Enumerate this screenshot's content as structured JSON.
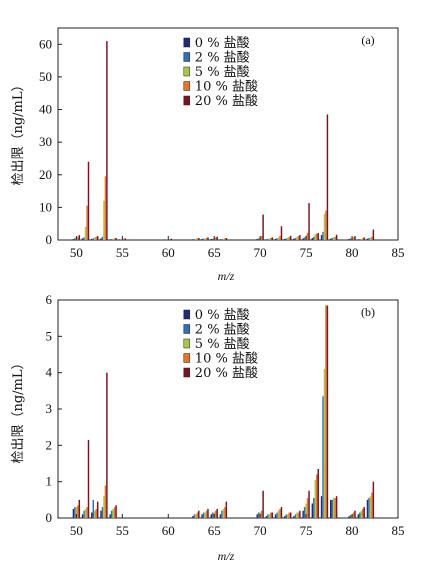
{
  "figure": {
    "ylabel": "检出限（ng/mL）",
    "xlabel_top": "m/z",
    "xlabel_bottom": "m/z"
  },
  "chart_data": [
    {
      "type": "bar",
      "panel_label": "(a)",
      "xlabel": "m/z",
      "ylabel": "检出限（ng/mL）",
      "xlim": [
        48,
        85
      ],
      "ylim": [
        0,
        65
      ],
      "xticks": [
        50,
        55,
        60,
        65,
        70,
        75,
        80,
        85
      ],
      "yticks": [
        0,
        10,
        20,
        30,
        40,
        50,
        60
      ],
      "legend_position": "top-center",
      "series_colors": [
        "#1f2a78",
        "#2f6fb5",
        "#a6c84a",
        "#e8742a",
        "#7a1420"
      ],
      "x": [
        50,
        51,
        52,
        53,
        54,
        55,
        60,
        63,
        64,
        65,
        66,
        70,
        71,
        72,
        73,
        74,
        75,
        76,
        77,
        78,
        80,
        81,
        82
      ],
      "series": [
        {
          "name": "0 % 盐酸",
          "values": [
            0.3,
            0.5,
            0.3,
            0.5,
            0.2,
            0.2,
            0.2,
            0.2,
            0.3,
            0.3,
            0.2,
            0.3,
            0.2,
            0.3,
            0.3,
            0.4,
            0.5,
            0.6,
            1.5,
            0.4,
            0.3,
            0.2,
            0.4
          ]
        },
        {
          "name": "2 % 盐酸",
          "values": [
            0.5,
            0.8,
            0.5,
            1.0,
            0.3,
            0.2,
            0.2,
            0.3,
            0.4,
            0.4,
            0.3,
            0.5,
            0.3,
            0.5,
            0.5,
            0.6,
            0.8,
            1.0,
            2.5,
            0.6,
            0.5,
            0.3,
            0.6
          ]
        },
        {
          "name": "5 % 盐酸",
          "values": [
            0.8,
            4.0,
            0.8,
            12.0,
            0.4,
            0.3,
            0.3,
            0.4,
            0.5,
            0.6,
            0.4,
            0.8,
            0.5,
            0.8,
            0.7,
            0.9,
            1.5,
            1.8,
            8.0,
            0.9,
            0.6,
            0.4,
            0.8
          ]
        },
        {
          "name": "10 % 盐酸",
          "values": [
            1.0,
            10.5,
            1.0,
            19.5,
            0.5,
            0.4,
            0.3,
            0.5,
            0.6,
            0.8,
            0.5,
            1.2,
            0.6,
            1.2,
            0.9,
            1.2,
            2.2,
            2.0,
            9.0,
            1.0,
            0.8,
            0.5,
            1.0
          ]
        },
        {
          "name": "20 % 盐酸",
          "values": [
            1.5,
            24.0,
            1.2,
            61.0,
            0.6,
            0.5,
            0.4,
            0.6,
            0.8,
            1.0,
            0.6,
            7.8,
            0.8,
            4.2,
            1.3,
            1.5,
            11.3,
            2.1,
            38.5,
            1.6,
            1.2,
            0.8,
            3.2
          ]
        }
      ]
    },
    {
      "type": "bar",
      "panel_label": "(b)",
      "xlabel": "m/z",
      "ylabel": "检出限（ng/mL）",
      "xlim": [
        48,
        85
      ],
      "ylim": [
        0,
        6
      ],
      "xticks": [
        50,
        55,
        60,
        65,
        70,
        75,
        80,
        85
      ],
      "yticks": [
        0,
        1,
        2,
        3,
        4,
        5,
        6
      ],
      "legend_position": "top-center",
      "series_colors": [
        "#1f2a78",
        "#2f6fb5",
        "#a6c84a",
        "#e8742a",
        "#7a1420"
      ],
      "x": [
        50,
        51,
        52,
        53,
        54,
        63,
        64,
        65,
        66,
        70,
        71,
        72,
        73,
        74,
        75,
        76,
        77,
        78,
        80,
        81,
        82
      ],
      "series": [
        {
          "name": "0 % 盐酸",
          "values": [
            0.25,
            0.1,
            0.15,
            0.2,
            0.1,
            0.05,
            0.1,
            0.1,
            0.1,
            0.1,
            0.05,
            0.1,
            0.05,
            0.05,
            0.2,
            0.4,
            0.6,
            0.5,
            0.05,
            0.1,
            0.5
          ]
        },
        {
          "name": "2 % 盐酸",
          "values": [
            0.3,
            0.2,
            0.5,
            0.3,
            0.2,
            0.1,
            0.15,
            0.15,
            0.2,
            0.15,
            0.1,
            0.15,
            0.1,
            0.1,
            0.3,
            0.55,
            3.35,
            0.5,
            0.08,
            0.15,
            0.55
          ]
        },
        {
          "name": "5 % 盐酸",
          "values": [
            0.3,
            0.25,
            0.2,
            0.6,
            0.25,
            0.1,
            0.15,
            0.15,
            0.25,
            0.15,
            0.1,
            0.2,
            0.1,
            0.15,
            0.4,
            1.05,
            4.1,
            0.55,
            0.1,
            0.2,
            0.6
          ]
        },
        {
          "name": "10 % 盐酸",
          "values": [
            0.35,
            0.3,
            0.25,
            0.9,
            0.3,
            0.15,
            0.2,
            0.2,
            0.3,
            0.2,
            0.15,
            0.25,
            0.15,
            0.15,
            0.55,
            1.2,
            5.85,
            0.55,
            0.15,
            0.25,
            0.7
          ]
        },
        {
          "name": "20 % 盐酸",
          "values": [
            0.5,
            2.15,
            0.45,
            4.0,
            0.35,
            0.2,
            0.25,
            0.25,
            0.45,
            0.75,
            0.15,
            0.3,
            0.15,
            0.2,
            0.75,
            1.35,
            5.85,
            0.6,
            0.2,
            0.3,
            1.0
          ]
        }
      ]
    }
  ]
}
